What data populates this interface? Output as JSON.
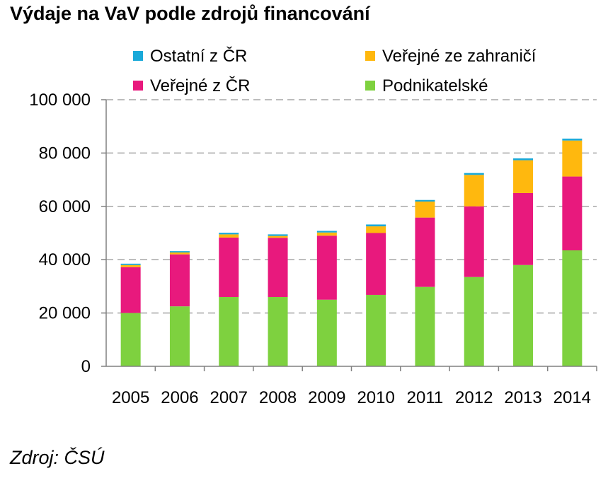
{
  "title": "Výdaje na VaV podle zdrojů financování",
  "source": "Zdroj: ČSÚ",
  "chart_data": {
    "type": "bar",
    "stacked": true,
    "title": "Výdaje na VaV podle zdrojů financování",
    "xlabel": "",
    "ylabel": "",
    "ylim": [
      0,
      100000
    ],
    "yticks": [
      0,
      20000,
      40000,
      60000,
      80000,
      100000
    ],
    "ytick_labels": [
      "0",
      "20 000",
      "40 000",
      "60 000",
      "80 000",
      "100 000"
    ],
    "grid": true,
    "legend_position": "top",
    "categories": [
      "2005",
      "2006",
      "2007",
      "2008",
      "2009",
      "2010",
      "2011",
      "2012",
      "2013",
      "2014"
    ],
    "series": [
      {
        "name": "Podnikatelské",
        "color": "#7ed13f",
        "values": [
          20000,
          22500,
          26000,
          26000,
          25000,
          26800,
          29800,
          33500,
          38000,
          43500
        ]
      },
      {
        "name": "Veřejné z ČR",
        "color": "#e8197d",
        "values": [
          17200,
          19500,
          22300,
          22200,
          24000,
          23200,
          26000,
          26500,
          27000,
          27700
        ]
      },
      {
        "name": "Veřejné ze zahraničí",
        "color": "#ffb80e",
        "values": [
          800,
          700,
          1200,
          700,
          1200,
          2500,
          6000,
          11800,
          12300,
          13500
        ]
      },
      {
        "name": "Ostatní z ČR",
        "color": "#1aa9d9",
        "values": [
          500,
          500,
          600,
          600,
          600,
          700,
          600,
          700,
          700,
          700
        ]
      }
    ],
    "legend_order": [
      "Ostatní z ČR",
      "Veřejné ze zahraničí",
      "Veřejné z ČR",
      "Podnikatelské"
    ]
  }
}
